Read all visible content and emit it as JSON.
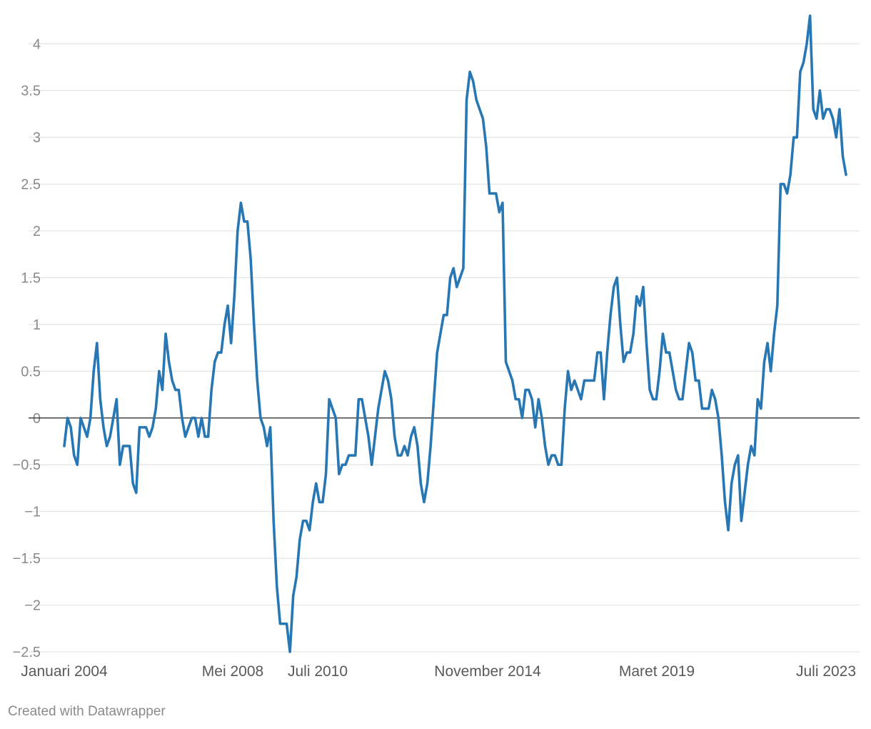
{
  "chart_data": {
    "type": "line",
    "title": "",
    "xlabel": "",
    "ylabel": "",
    "ylim": [
      -2.5,
      4.3
    ],
    "y_ticks": [
      -2.5,
      -2,
      -1.5,
      -1,
      -0.5,
      0,
      0.5,
      1,
      1.5,
      2,
      2.5,
      3,
      3.5,
      4
    ],
    "y_tick_labels": [
      "−2.5",
      "−2",
      "−1.5",
      "−1",
      "−0.5",
      "0",
      "0.5",
      "1",
      "1.5",
      "2",
      "2.5",
      "3",
      "3.5",
      "4"
    ],
    "x_tick_labels": [
      "Januari 2004",
      "Mei 2008",
      "Juli 2010",
      "November 2014",
      "Maret 2019",
      "Juli 2023"
    ],
    "x_range": [
      "2004-01",
      "2023-12"
    ],
    "grid": true,
    "zero_line": true,
    "line_color": "#2777b4",
    "series": [
      {
        "name": "",
        "x": [
          "2004-01",
          "2004-02",
          "2004-03",
          "2004-04",
          "2004-05",
          "2004-06",
          "2004-07",
          "2004-08",
          "2004-09",
          "2004-10",
          "2004-11",
          "2004-12",
          "2005-01",
          "2005-02",
          "2005-03",
          "2005-04",
          "2005-05",
          "2005-06",
          "2005-07",
          "2005-08",
          "2005-09",
          "2005-10",
          "2005-11",
          "2005-12",
          "2006-01",
          "2006-02",
          "2006-03",
          "2006-04",
          "2006-05",
          "2006-06",
          "2006-07",
          "2006-08",
          "2006-09",
          "2006-10",
          "2006-11",
          "2006-12",
          "2007-01",
          "2007-02",
          "2007-03",
          "2007-04",
          "2007-05",
          "2007-06",
          "2007-07",
          "2007-08",
          "2007-09",
          "2007-10",
          "2007-11",
          "2007-12",
          "2008-01",
          "2008-02",
          "2008-03",
          "2008-04",
          "2008-05",
          "2008-06",
          "2008-07",
          "2008-08",
          "2008-09",
          "2008-10",
          "2008-11",
          "2008-12",
          "2009-01",
          "2009-02",
          "2009-03",
          "2009-04",
          "2009-05",
          "2009-06",
          "2009-07",
          "2009-08",
          "2009-09",
          "2009-10",
          "2009-11",
          "2009-12",
          "2010-01",
          "2010-02",
          "2010-03",
          "2010-04",
          "2010-05",
          "2010-06",
          "2010-07",
          "2010-08",
          "2010-09",
          "2010-10",
          "2010-11",
          "2010-12",
          "2011-01",
          "2011-02",
          "2011-03",
          "2011-04",
          "2011-05",
          "2011-06",
          "2011-07",
          "2011-08",
          "2011-09",
          "2011-10",
          "2011-11",
          "2011-12",
          "2012-01",
          "2012-02",
          "2012-03",
          "2012-04",
          "2012-05",
          "2012-06",
          "2012-07",
          "2012-08",
          "2012-09",
          "2012-10",
          "2012-11",
          "2012-12",
          "2013-01",
          "2013-02",
          "2013-03",
          "2013-04",
          "2013-05",
          "2013-06",
          "2013-07",
          "2013-08",
          "2013-09",
          "2013-10",
          "2013-11",
          "2013-12",
          "2014-01",
          "2014-02",
          "2014-03",
          "2014-04",
          "2014-05",
          "2014-06",
          "2014-07",
          "2014-08",
          "2014-09",
          "2014-10",
          "2014-11",
          "2014-12",
          "2015-01",
          "2015-02",
          "2015-03",
          "2015-04",
          "2015-05",
          "2015-06",
          "2015-07",
          "2015-08",
          "2015-09",
          "2015-10",
          "2015-11",
          "2015-12",
          "2016-01",
          "2016-02",
          "2016-03",
          "2016-04",
          "2016-05",
          "2016-06",
          "2016-07",
          "2016-08",
          "2016-09",
          "2016-10",
          "2016-11",
          "2016-12",
          "2017-01",
          "2017-02",
          "2017-03",
          "2017-04",
          "2017-05",
          "2017-06",
          "2017-07",
          "2017-08",
          "2017-09",
          "2017-10",
          "2017-11",
          "2017-12",
          "2018-01",
          "2018-02",
          "2018-03",
          "2018-04",
          "2018-05",
          "2018-06",
          "2018-07",
          "2018-08",
          "2018-09",
          "2018-10",
          "2018-11",
          "2018-12",
          "2019-01",
          "2019-02",
          "2019-03",
          "2019-04",
          "2019-05",
          "2019-06",
          "2019-07",
          "2019-08",
          "2019-09",
          "2019-10",
          "2019-11",
          "2019-12",
          "2020-01",
          "2020-02",
          "2020-03",
          "2020-04",
          "2020-05",
          "2020-06",
          "2020-07",
          "2020-08",
          "2020-09",
          "2020-10",
          "2020-11",
          "2020-12",
          "2021-01",
          "2021-02",
          "2021-03",
          "2021-04",
          "2021-05",
          "2021-06",
          "2021-07",
          "2021-08",
          "2021-09",
          "2021-10",
          "2021-11",
          "2021-12",
          "2022-01",
          "2022-02",
          "2022-03",
          "2022-04",
          "2022-05",
          "2022-06",
          "2022-07",
          "2022-08",
          "2022-09",
          "2022-10",
          "2022-11",
          "2022-12",
          "2023-01",
          "2023-02",
          "2023-03",
          "2023-04",
          "2023-05",
          "2023-06",
          "2023-07",
          "2023-08",
          "2023-09",
          "2023-10",
          "2023-11",
          "2023-12"
        ],
        "values": [
          -0.3,
          0.0,
          -0.1,
          -0.4,
          -0.5,
          0.0,
          -0.1,
          -0.2,
          0.0,
          0.5,
          0.8,
          0.2,
          -0.1,
          -0.3,
          -0.2,
          0.0,
          0.2,
          -0.5,
          -0.3,
          -0.3,
          -0.3,
          -0.7,
          -0.8,
          -0.1,
          -0.1,
          -0.1,
          -0.2,
          -0.1,
          0.1,
          0.5,
          0.3,
          0.9,
          0.6,
          0.4,
          0.3,
          0.3,
          0.0,
          -0.2,
          -0.1,
          0.0,
          0.0,
          -0.2,
          0.0,
          -0.2,
          -0.2,
          0.3,
          0.6,
          0.7,
          0.7,
          1.0,
          1.2,
          0.8,
          1.3,
          2.0,
          2.3,
          2.1,
          2.1,
          1.7,
          1.0,
          0.4,
          0.0,
          -0.1,
          -0.3,
          -0.1,
          -1.1,
          -1.8,
          -2.2,
          -2.2,
          -2.2,
          -2.5,
          -1.9,
          -1.7,
          -1.3,
          -1.1,
          -1.1,
          -1.2,
          -0.9,
          -0.7,
          -0.9,
          -0.9,
          -0.6,
          0.2,
          0.1,
          0.0,
          -0.6,
          -0.5,
          -0.5,
          -0.4,
          -0.4,
          -0.4,
          0.2,
          0.2,
          0.0,
          -0.2,
          -0.5,
          -0.2,
          0.1,
          0.3,
          0.5,
          0.4,
          0.2,
          -0.2,
          -0.4,
          -0.4,
          -0.3,
          -0.4,
          -0.2,
          -0.1,
          -0.3,
          -0.7,
          -0.9,
          -0.7,
          -0.3,
          0.2,
          0.7,
          0.9,
          1.1,
          1.1,
          1.5,
          1.6,
          1.4,
          1.5,
          1.6,
          3.4,
          3.7,
          3.6,
          3.4,
          3.3,
          3.2,
          2.9,
          2.4,
          2.4,
          2.4,
          2.2,
          2.3,
          0.6,
          0.5,
          0.4,
          0.2,
          0.2,
          0.0,
          0.3,
          0.3,
          0.2,
          -0.1,
          0.2,
          0.0,
          -0.3,
          -0.5,
          -0.4,
          -0.4,
          -0.5,
          -0.5,
          0.1,
          0.5,
          0.3,
          0.4,
          0.3,
          0.2,
          0.4,
          0.4,
          0.4,
          0.4,
          0.7,
          0.7,
          0.2,
          0.7,
          1.1,
          1.4,
          1.5,
          1.0,
          0.6,
          0.7,
          0.7,
          0.9,
          1.3,
          1.2,
          1.4,
          0.8,
          0.3,
          0.2,
          0.2,
          0.5,
          0.9,
          0.7,
          0.7,
          0.5,
          0.3,
          0.2,
          0.2,
          0.5,
          0.8,
          0.7,
          0.4,
          0.4,
          0.1,
          0.1,
          0.1,
          0.3,
          0.2,
          0.0,
          -0.4,
          -0.9,
          -1.2,
          -0.7,
          -0.5,
          -0.4,
          -1.1,
          -0.8,
          -0.5,
          -0.3,
          -0.4,
          0.2,
          0.1,
          0.6,
          0.8,
          0.5,
          0.9,
          1.2,
          2.5,
          2.5,
          2.4,
          2.6,
          3.0,
          3.0,
          3.7,
          3.8,
          4.0,
          4.3,
          3.3,
          3.2,
          3.5,
          3.2,
          3.3,
          3.3,
          3.2,
          3.0,
          3.3,
          2.8,
          2.6
        ]
      }
    ]
  },
  "footer": {
    "credit": "Created with Datawrapper"
  }
}
